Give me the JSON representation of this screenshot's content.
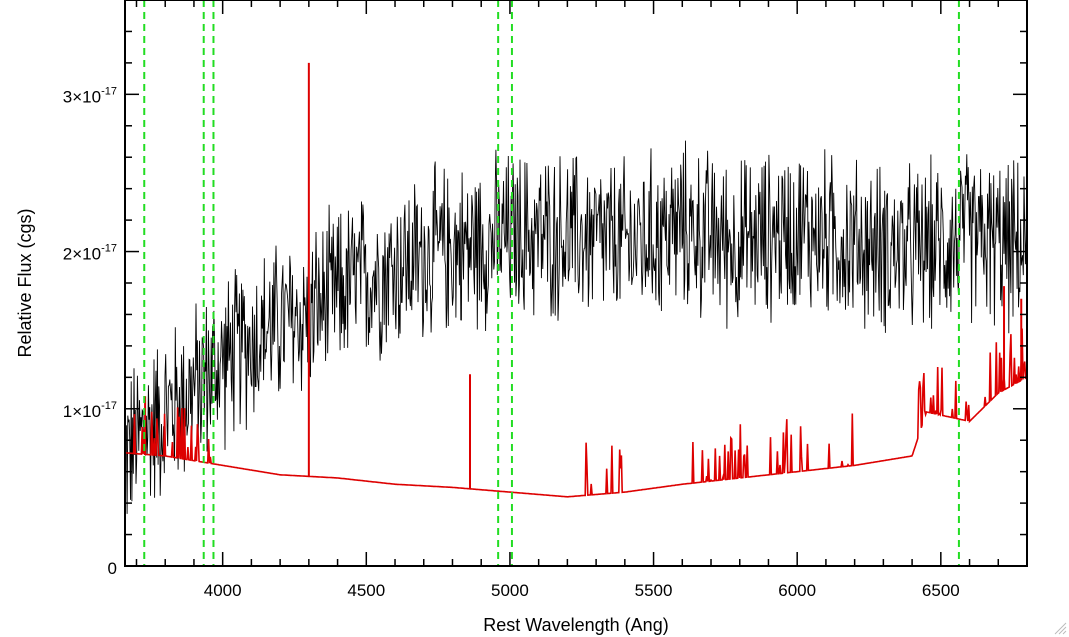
{
  "chart_data": {
    "type": "line",
    "title": "",
    "xlabel": "Rest Wavelength (Ang)",
    "ylabel": "Relative Flux (cgs)",
    "xlim": [
      3660,
      6800
    ],
    "ylim": [
      0,
      3.6e-17
    ],
    "x_ticks": [
      4000,
      4500,
      5000,
      5500,
      6000,
      6500
    ],
    "x_tick_labels": [
      "4000",
      "4500",
      "5000",
      "5500",
      "6000",
      "6500"
    ],
    "y_ticks": [
      {
        "value": 0,
        "mantissa": "0",
        "exponent": ""
      },
      {
        "value": 1e-17,
        "mantissa": "1×10",
        "exponent": "-17"
      },
      {
        "value": 2e-17,
        "mantissa": "2×10",
        "exponent": "-17"
      },
      {
        "value": 3e-17,
        "mantissa": "3×10",
        "exponent": "-17"
      }
    ],
    "series": [
      {
        "color": "#000000",
        "style": "noisy spectrum",
        "trend_x": [
          3660,
          3750,
          3850,
          4000,
          4150,
          4300,
          4450,
          4600,
          4750,
          4900,
          5000,
          5200,
          5400,
          5600,
          5800,
          6000,
          6200,
          6400,
          6600,
          6800
        ],
        "trend_y": [
          7e-18,
          9e-18,
          1.05e-17,
          1.3e-17,
          1.5e-17,
          1.6e-17,
          1.8e-17,
          1.9e-17,
          2e-17,
          2.05e-17,
          2.1e-17,
          2.1e-17,
          2.05e-17,
          2.15e-17,
          2.05e-17,
          2.15e-17,
          2.05e-17,
          2e-17,
          2.1e-17,
          2e-17
        ],
        "noise_amplitude": 4.5e-18
      },
      {
        "color": "#dd0000",
        "style": "model/error spectrum",
        "trend_x": [
          3660,
          3800,
          4000,
          4200,
          4400,
          4600,
          4800,
          5000,
          5200,
          5400,
          5600,
          5800,
          6000,
          6200,
          6400,
          6450,
          6600,
          6700,
          6800
        ],
        "trend_y": [
          7.2e-18,
          7e-18,
          6.4e-18,
          5.8e-18,
          5.6e-18,
          5.2e-18,
          5e-18,
          4.7e-18,
          4.4e-18,
          4.7e-18,
          5.2e-18,
          5.6e-18,
          6e-18,
          6.4e-18,
          7e-18,
          9.8e-18,
          9.2e-18,
          1.1e-17,
          1.2e-17
        ],
        "spikes": [
          {
            "x": 4300,
            "y": 3.2e-17
          },
          {
            "x": 4861,
            "y": 1.22e-17
          },
          {
            "x": 3730,
            "y": 1.08e-17
          },
          {
            "x": 6720,
            "y": 1.78e-17
          },
          {
            "x": 6780,
            "y": 1.7e-17
          }
        ]
      }
    ],
    "vertical_lines": {
      "color": "#22dd22",
      "style": "dashed",
      "x": [
        3727,
        3934,
        3968,
        4959,
        5007,
        6563
      ]
    },
    "grid": false,
    "legend": "none"
  }
}
